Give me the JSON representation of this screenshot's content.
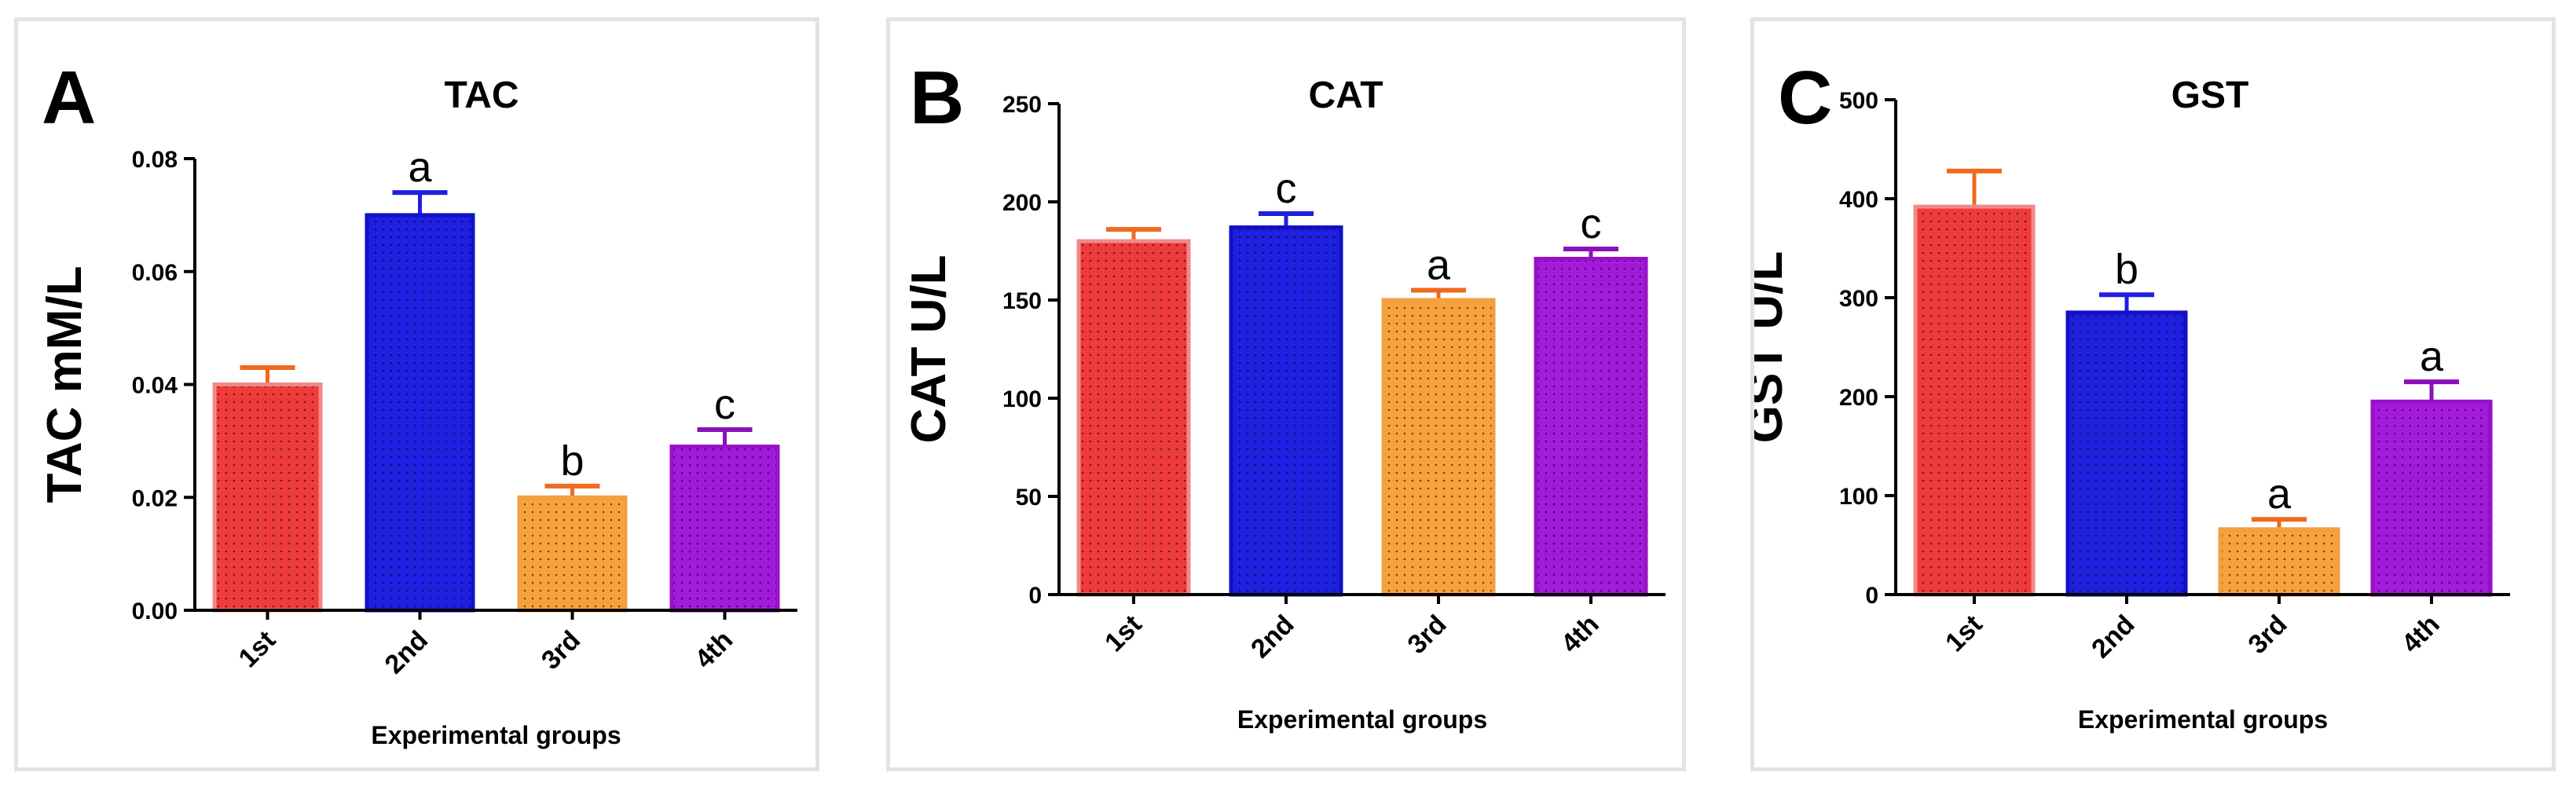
{
  "colors": {
    "groups": [
      "#f03b3b",
      "#1f1fe0",
      "#f7a23c",
      "#a21bdb"
    ],
    "outlines": [
      "#f08a8a",
      "#1010c8",
      "#f2a040",
      "#9a10c8"
    ],
    "errors": [
      "#ee6a1e",
      "#1f1fe0",
      "#ee6a1e",
      "#8a10b8"
    ]
  },
  "chart_data": [
    {
      "panel_letter": "A",
      "type": "bar",
      "title": "TAC",
      "ylabel": "TAC mM/L",
      "xlabel": "Experimental groups",
      "categories": [
        "1st",
        "2nd",
        "3rd",
        "4th"
      ],
      "values": [
        0.04,
        0.07,
        0.02,
        0.029
      ],
      "errors": [
        0.003,
        0.004,
        0.002,
        0.003
      ],
      "significance": [
        "",
        "a",
        "b",
        "c"
      ],
      "ylim": [
        0,
        0.08
      ],
      "yticks": [
        0.0,
        0.02,
        0.04,
        0.06,
        0.08
      ],
      "ytick_labels": [
        "0.00",
        "0.02",
        "0.04",
        "0.06",
        "0.08"
      ]
    },
    {
      "panel_letter": "B",
      "type": "bar",
      "title": "CAT",
      "ylabel": "CAT U/L",
      "xlabel": "Experimental groups",
      "categories": [
        "1st",
        "2nd",
        "3rd",
        "4th"
      ],
      "values": [
        180,
        187,
        150,
        171
      ],
      "errors": [
        6,
        7,
        5,
        5
      ],
      "significance": [
        "",
        "c",
        "a",
        "c"
      ],
      "ylim": [
        0,
        250
      ],
      "yticks": [
        0,
        50,
        100,
        150,
        200,
        250
      ],
      "ytick_labels": [
        "0",
        "50",
        "100",
        "150",
        "200",
        "250"
      ]
    },
    {
      "panel_letter": "C",
      "type": "bar",
      "title": "GST",
      "ylabel": "GST U/L",
      "xlabel": "Experimental groups",
      "categories": [
        "1st",
        "2nd",
        "3rd",
        "4th"
      ],
      "values": [
        392,
        285,
        66,
        195
      ],
      "errors": [
        36,
        18,
        10,
        20
      ],
      "significance": [
        "",
        "b",
        "a",
        "a"
      ],
      "ylim": [
        0,
        500
      ],
      "yticks": [
        0,
        100,
        200,
        300,
        400,
        500
      ],
      "ytick_labels": [
        "0",
        "100",
        "200",
        "300",
        "400",
        "500"
      ]
    }
  ]
}
